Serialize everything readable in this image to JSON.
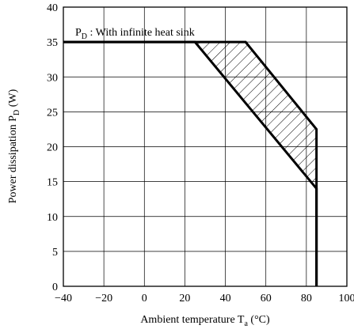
{
  "chart_data": {
    "type": "line",
    "xlabel_main": "Ambient temperature T",
    "xlabel_sub": "a",
    "xlabel_unit": " (°C)",
    "ylabel_main": "Power dissipation P",
    "ylabel_sub": "D",
    "ylabel_unit": " (W)",
    "annotation_main": "P",
    "annotation_sub": "D",
    "annotation_text": " : With infinite heat sink",
    "xlim": [
      -40,
      100
    ],
    "ylim": [
      0,
      40
    ],
    "x_ticks": [
      -40,
      -20,
      0,
      20,
      40,
      60,
      80,
      100
    ],
    "x_tick_labels": [
      "−40",
      "−20",
      "0",
      "20",
      "40",
      "60",
      "80",
      "100"
    ],
    "y_ticks": [
      0,
      5,
      10,
      15,
      20,
      25,
      30,
      35,
      40
    ],
    "y_tick_labels": [
      "0",
      "5",
      "10",
      "15",
      "20",
      "25",
      "30",
      "35",
      "40"
    ],
    "grid": true,
    "series": [
      {
        "values": [
          [
            -40,
            35
          ],
          [
            50,
            35
          ],
          [
            85,
            22.5
          ],
          [
            85,
            0
          ]
        ]
      },
      {
        "values": [
          [
            -40,
            35
          ],
          [
            25,
            35
          ],
          [
            85,
            14
          ],
          [
            85,
            0
          ]
        ]
      }
    ],
    "shaded_region": [
      [
        25,
        35
      ],
      [
        50,
        35
      ],
      [
        85,
        22.5
      ],
      [
        85,
        14
      ]
    ]
  }
}
